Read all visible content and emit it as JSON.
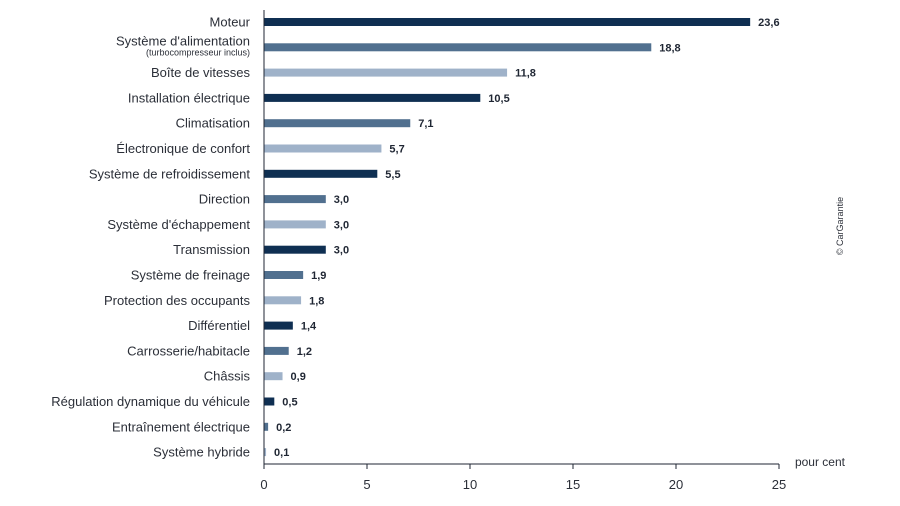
{
  "chart_data": {
    "type": "bar",
    "orientation": "horizontal",
    "categories": [
      "Moteur",
      "Système d'alimentation",
      "Boîte de vitesses",
      "Installation électrique",
      "Climatisation",
      "Électronique de confort",
      "Système de refroidissement",
      "Direction",
      "Système d'échappement",
      "Transmission",
      "Système de freinage",
      "Protection des occupants",
      "Différentiel",
      "Carrosserie/habitacle",
      "Châssis",
      "Régulation dynamique du véhicule",
      "Entraînement électrique",
      "Système hybride"
    ],
    "category_sublabels": {
      "1": "(turbocompresseur inclus)"
    },
    "values": [
      23.6,
      18.8,
      11.8,
      10.5,
      7.1,
      5.7,
      5.5,
      3.0,
      3.0,
      3.0,
      1.9,
      1.8,
      1.4,
      1.2,
      0.9,
      0.5,
      0.2,
      0.1
    ],
    "value_labels": [
      "23,6",
      "18,8",
      "11,8",
      "10,5",
      "7,1",
      "5,7",
      "5,5",
      "3,0",
      "3,0",
      "3,0",
      "1,9",
      "1,8",
      "1,4",
      "1,2",
      "0,9",
      "0,5",
      "0,2",
      "0,1"
    ],
    "colors": [
      "#0f2f52",
      "#51708f",
      "#9fb2c9"
    ],
    "x_ticks": [
      0,
      5,
      10,
      15,
      20,
      25
    ],
    "xlim": [
      0,
      25
    ],
    "xlabel": "pour cent",
    "ylabel": "",
    "grid": false,
    "title": "",
    "credit": "© CarGarantie"
  }
}
